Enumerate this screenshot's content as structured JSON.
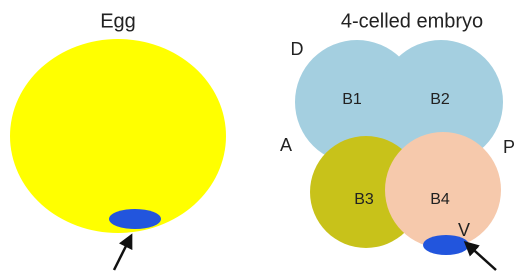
{
  "egg": {
    "title": "Egg"
  },
  "embryo": {
    "title": "4-celled embryo",
    "axes": {
      "dorsal": "D",
      "anterior": "A",
      "posterior": "P",
      "ventral": "V"
    },
    "cells": [
      "B1",
      "B2",
      "B3",
      "B4"
    ]
  }
}
